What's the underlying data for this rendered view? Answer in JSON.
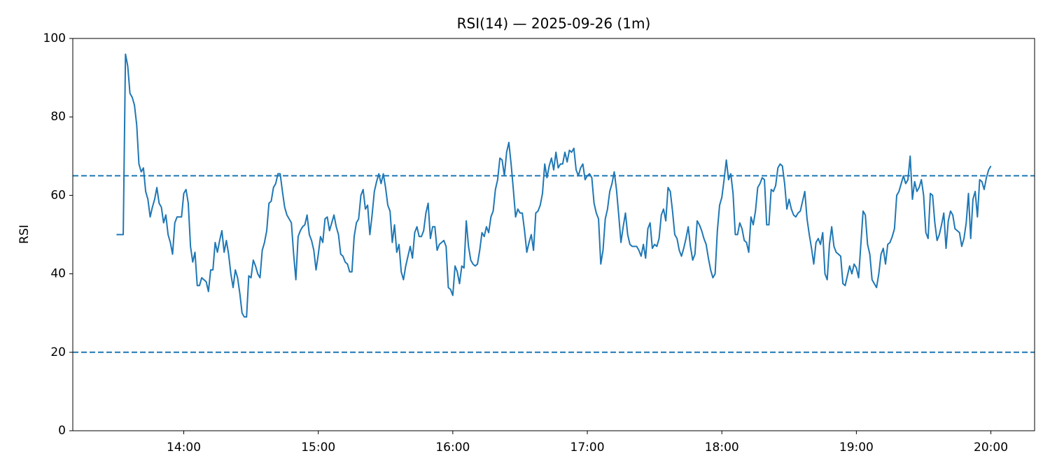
{
  "chart_data": {
    "type": "line",
    "title": "RSI(14) — 2025-09-26 (1m)",
    "ylabel": "RSI",
    "color": "#1f77b4",
    "x": [
      810,
      811,
      812,
      813,
      814,
      815,
      816,
      817,
      818,
      819,
      820,
      821,
      822,
      823,
      824,
      825,
      826,
      827,
      828,
      829,
      830,
      831,
      832,
      833,
      834,
      835,
      836,
      837,
      838,
      839,
      840,
      841,
      842,
      843,
      844,
      845,
      846,
      847,
      848,
      849,
      850,
      851,
      852,
      853,
      854,
      855,
      856,
      857,
      858,
      859,
      860,
      861,
      862,
      863,
      864,
      865,
      866,
      867,
      868,
      869,
      870,
      871,
      872,
      873,
      874,
      875,
      876,
      877,
      878,
      879,
      880,
      881,
      882,
      883,
      884,
      885,
      886,
      887,
      888,
      889,
      890,
      891,
      892,
      893,
      894,
      895,
      896,
      897,
      898,
      899,
      900,
      901,
      902,
      903,
      904,
      905,
      906,
      907,
      908,
      909,
      910,
      911,
      912,
      913,
      914,
      915,
      916,
      917,
      918,
      919,
      920,
      921,
      922,
      923,
      924,
      925,
      926,
      927,
      928,
      929,
      930,
      931,
      932,
      933,
      934,
      935,
      936,
      937,
      938,
      939,
      940,
      941,
      942,
      943,
      944,
      945,
      946,
      947,
      948,
      949,
      950,
      951,
      952,
      953,
      954,
      955,
      956,
      957,
      958,
      959,
      960,
      961,
      962,
      963,
      964,
      965,
      966,
      967,
      968,
      969,
      970,
      971,
      972,
      973,
      974,
      975,
      976,
      977,
      978,
      979,
      980,
      981,
      982,
      983,
      984,
      985,
      986,
      987,
      988,
      989,
      990,
      991,
      992,
      993,
      994,
      995,
      996,
      997,
      998,
      999,
      1000,
      1001,
      1002,
      1003,
      1004,
      1005,
      1006,
      1007,
      1008,
      1009,
      1010,
      1011,
      1012,
      1013,
      1014,
      1015,
      1016,
      1017,
      1018,
      1019,
      1020,
      1021,
      1022,
      1023,
      1024,
      1025,
      1026,
      1027,
      1028,
      1029,
      1030,
      1031,
      1032,
      1033,
      1034,
      1035,
      1036,
      1037,
      1038,
      1039,
      1040,
      1041,
      1042,
      1043,
      1044,
      1045,
      1046,
      1047,
      1048,
      1049,
      1050,
      1051,
      1052,
      1053,
      1054,
      1055,
      1056,
      1057,
      1058,
      1059,
      1060,
      1061,
      1062,
      1063,
      1064,
      1065,
      1066,
      1067,
      1068,
      1069,
      1070,
      1071,
      1072,
      1073,
      1074,
      1075,
      1076,
      1077,
      1078,
      1079,
      1080,
      1081,
      1082,
      1083,
      1084,
      1085,
      1086,
      1087,
      1088,
      1089,
      1090,
      1091,
      1092,
      1093,
      1094,
      1095,
      1096,
      1097,
      1098,
      1099,
      1100,
      1101,
      1102,
      1103,
      1104,
      1105,
      1106,
      1107,
      1108,
      1109,
      1110,
      1111,
      1112,
      1113,
      1114,
      1115,
      1116,
      1117,
      1118,
      1119,
      1120,
      1121,
      1122,
      1123,
      1124,
      1125,
      1126,
      1127,
      1128,
      1129,
      1130,
      1131,
      1132,
      1133,
      1134,
      1135,
      1136,
      1137,
      1138,
      1139,
      1140,
      1141,
      1142,
      1143,
      1144,
      1145,
      1146,
      1147,
      1148,
      1149,
      1150,
      1151,
      1152,
      1153,
      1154,
      1155,
      1156,
      1157,
      1158,
      1159,
      1160,
      1161,
      1162,
      1163,
      1164,
      1165,
      1166,
      1167,
      1168,
      1169,
      1170,
      1171,
      1172,
      1173,
      1174,
      1175,
      1176,
      1177,
      1178,
      1179,
      1180,
      1181,
      1182,
      1183,
      1184,
      1185,
      1186,
      1187,
      1188,
      1189,
      1190,
      1191,
      1192,
      1193,
      1194,
      1195,
      1196,
      1197,
      1198,
      1199,
      1200
    ],
    "values": [
      50,
      50,
      50,
      50,
      96,
      93,
      86,
      85,
      83,
      78,
      68,
      66,
      67,
      61,
      59,
      54.5,
      57,
      59,
      62,
      58,
      57,
      53,
      55,
      50,
      48,
      45,
      53,
      54.5,
      54.5,
      54.5,
      60.5,
      61.5,
      58,
      47,
      43,
      45.5,
      37,
      37,
      39,
      38.5,
      38,
      35.5,
      41,
      41,
      48,
      45.5,
      48.5,
      51,
      45.5,
      48.5,
      45,
      40,
      36.5,
      41,
      39,
      35,
      30,
      29,
      29,
      39.5,
      39,
      43.5,
      42,
      40,
      39,
      46,
      48,
      51,
      58,
      58.5,
      62,
      63,
      65.5,
      65.5,
      61,
      57,
      55,
      54,
      53,
      45,
      38.5,
      49.5,
      51,
      52,
      52.5,
      55,
      50,
      48.5,
      46,
      41,
      45,
      49.5,
      48,
      54,
      54.5,
      51,
      53,
      55,
      52,
      50,
      45,
      44.5,
      43,
      42.5,
      40.5,
      40.5,
      49.5,
      53,
      54,
      60,
      61.5,
      56.5,
      57.5,
      50,
      55,
      61,
      63.5,
      65.5,
      63,
      65.5,
      62,
      57.5,
      56,
      48,
      52.5,
      45.5,
      47.5,
      40.5,
      38.5,
      42,
      44.5,
      47,
      44,
      50.5,
      52,
      49.5,
      49.5,
      51,
      55.5,
      58,
      49,
      52,
      52,
      46,
      47.5,
      48,
      48.5,
      47,
      36.5,
      36,
      34.5,
      42,
      40.5,
      37.5,
      42,
      41.5,
      53.5,
      47,
      43.5,
      42.5,
      42,
      42.5,
      46,
      50.5,
      49.5,
      52,
      50.5,
      54.5,
      56,
      61.5,
      64,
      69.5,
      69,
      65,
      71,
      73.5,
      68,
      61.5,
      54.5,
      56.5,
      55.5,
      55.5,
      51,
      45.5,
      48,
      50,
      46,
      55.5,
      56,
      57.5,
      60.5,
      68,
      64.5,
      67.5,
      69.5,
      66.5,
      71,
      67,
      68,
      68,
      71,
      68.5,
      71.5,
      71,
      72,
      66.5,
      65,
      67,
      68,
      64,
      65,
      65.5,
      64.5,
      58,
      55.5,
      54,
      42.5,
      46,
      54,
      56.5,
      61,
      63,
      66,
      61.5,
      55,
      48,
      52,
      55.5,
      50,
      47.5,
      47,
      47,
      47,
      46,
      44.5,
      47.5,
      44,
      51.5,
      53,
      46.5,
      47.5,
      47,
      49,
      55,
      56.5,
      53.5,
      62,
      61,
      56,
      50,
      49,
      46,
      44.5,
      46.5,
      49,
      52,
      47,
      43.5,
      45,
      53.5,
      52.5,
      51,
      49,
      47.5,
      44,
      41,
      39,
      40,
      51,
      57.5,
      59.5,
      64,
      69,
      64,
      65.5,
      60.5,
      50,
      50,
      53,
      51.5,
      48.5,
      48,
      45.5,
      54.5,
      52.5,
      56,
      62,
      63,
      64.5,
      64,
      52.5,
      52.5,
      61.5,
      61,
      62.5,
      67,
      68,
      67.5,
      63,
      56.5,
      59,
      56.5,
      55,
      54.5,
      55.5,
      56,
      58.5,
      61,
      54,
      50,
      46.5,
      42.5,
      48,
      49,
      47.5,
      50.5,
      40,
      38.5,
      47.5,
      52,
      47,
      45.5,
      45,
      44.5,
      37.5,
      37,
      39.5,
      42,
      40,
      42.5,
      41.5,
      39,
      47.5,
      56,
      55,
      47.5,
      45,
      38.5,
      37.5,
      36.5,
      40,
      45,
      46.5,
      42.5,
      47.5,
      48,
      49.5,
      51.5,
      60,
      61,
      63,
      65,
      63,
      64,
      70,
      59,
      63.5,
      61,
      62,
      64,
      60,
      50.5,
      49,
      60.5,
      60,
      53,
      48.5,
      50,
      52.5,
      55.5,
      46.5,
      53.5,
      56,
      55,
      51.5,
      51,
      50.5,
      47,
      49,
      53,
      60.5,
      49,
      59,
      61,
      54.5,
      64,
      63.5,
      61.5,
      64.5,
      66.5,
      67.5
    ],
    "hlines": [
      65,
      20
    ],
    "xlim": [
      790.5,
      1219.5
    ],
    "xticks": [
      {
        "value": 840,
        "label": "14:00"
      },
      {
        "value": 900,
        "label": "15:00"
      },
      {
        "value": 960,
        "label": "16:00"
      },
      {
        "value": 1020,
        "label": "17:00"
      },
      {
        "value": 1080,
        "label": "18:00"
      },
      {
        "value": 1140,
        "label": "19:00"
      },
      {
        "value": 1200,
        "label": "20:00"
      }
    ],
    "ylim": [
      0,
      100
    ],
    "yticks": [
      0,
      20,
      40,
      60,
      80,
      100
    ],
    "grid": false
  }
}
